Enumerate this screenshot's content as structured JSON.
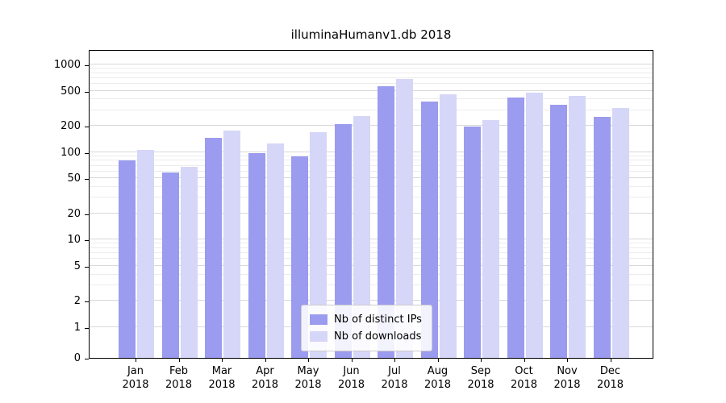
{
  "chart_data": {
    "type": "bar",
    "title": "illuminaHumanv1.db 2018",
    "categories": [
      "Jan",
      "Feb",
      "Mar",
      "Apr",
      "May",
      "Jun",
      "Jul",
      "Aug",
      "Sep",
      "Oct",
      "Nov",
      "Dec"
    ],
    "category_year": "2018",
    "series": [
      {
        "name": "Nb of distinct IPs",
        "color": "#9b9bef",
        "values": [
          80,
          58,
          145,
          97,
          90,
          210,
          560,
          380,
          195,
          420,
          350,
          250
        ]
      },
      {
        "name": "Nb of downloads",
        "color": "#d6d6f8",
        "values": [
          105,
          68,
          175,
          125,
          170,
          260,
          680,
          460,
          230,
          480,
          440,
          320
        ]
      }
    ],
    "yticks": [
      0,
      1,
      2,
      5,
      10,
      20,
      50,
      100,
      200,
      500,
      1000
    ],
    "ylim": [
      0,
      1400
    ],
    "scale": "symlog",
    "grid": true,
    "legend_position": "bottom-center",
    "colors": {
      "axis": "#000000",
      "grid_major": "#d8d8d8",
      "grid_minor": "#ececec"
    }
  }
}
